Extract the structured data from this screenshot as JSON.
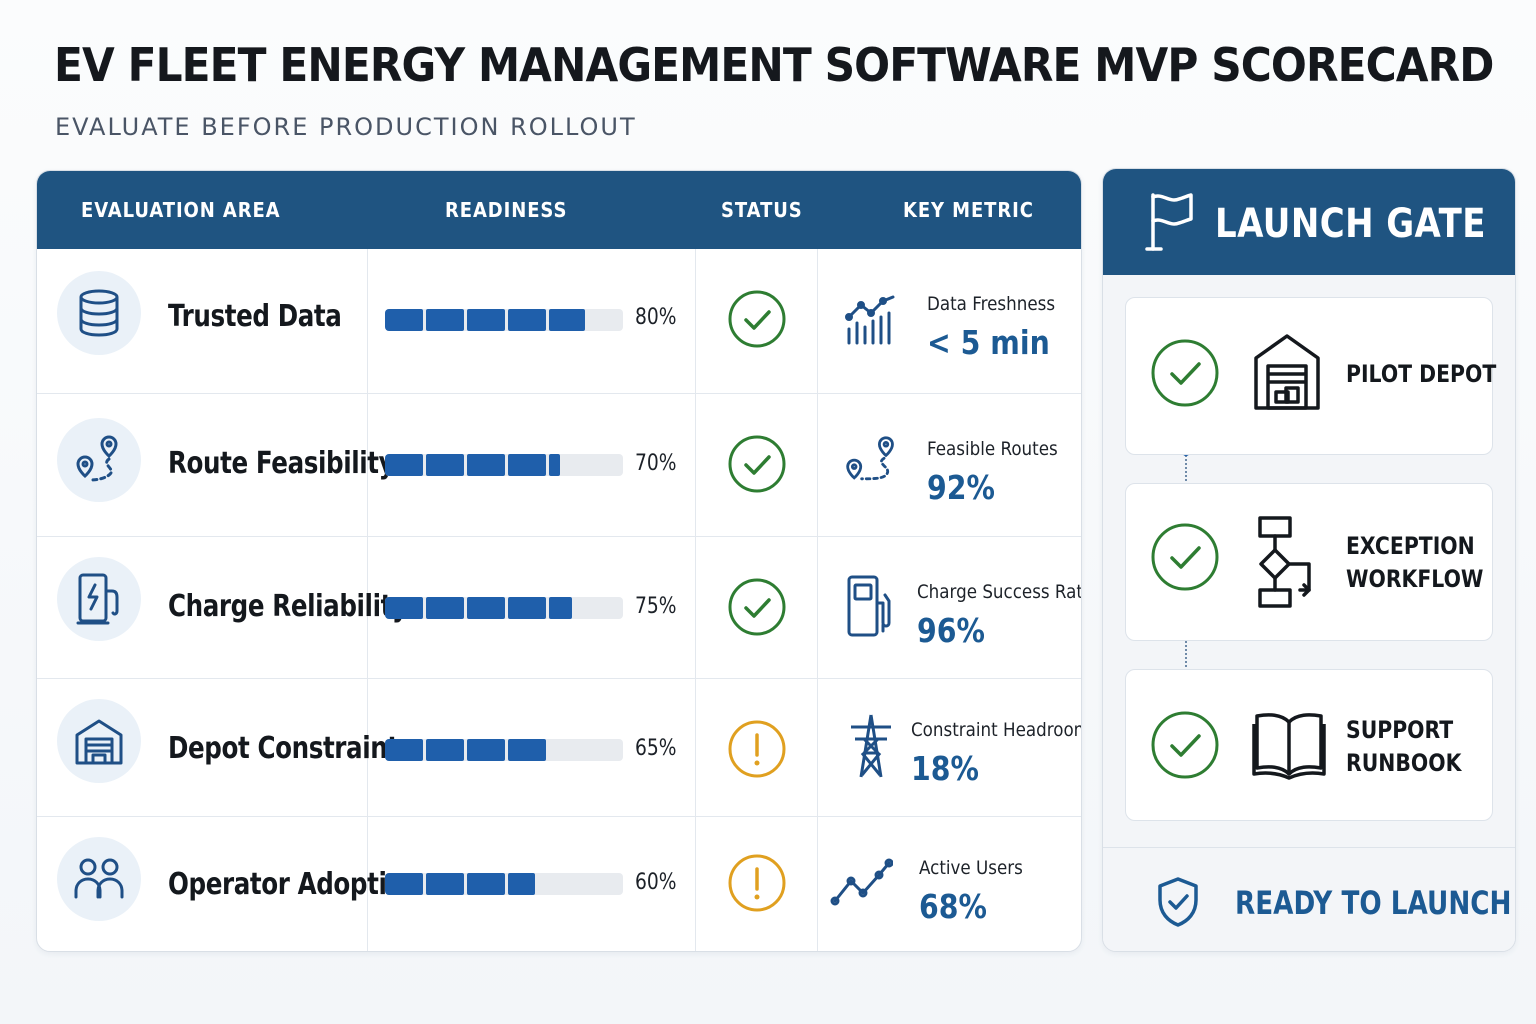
{
  "title": "EV FLEET ENERGY MANAGEMENT SOFTWARE MVP SCORECARD",
  "subtitle": "EVALUATE BEFORE PRODUCTION ROLLOUT",
  "table": {
    "headers": {
      "area": "EVALUATION AREA",
      "readiness": "READINESS",
      "status": "STATUS",
      "metric": "KEY METRIC"
    },
    "rows": [
      {
        "area": "Trusted Data",
        "area_icon": "database-icon",
        "readiness": 0.8,
        "readiness_label": "80%",
        "status": "ok",
        "metric_icon": "chart-trend-icon",
        "metric_name": "Data Freshness",
        "metric_value": "< 5 min"
      },
      {
        "area": "Route Feasibility",
        "area_icon": "route-pins-icon",
        "readiness": 0.7,
        "readiness_label": "70%",
        "status": "ok",
        "metric_icon": "route-pins-icon",
        "metric_name": "Feasible Routes",
        "metric_value": "92%"
      },
      {
        "area": "Charge Reliability",
        "area_icon": "charger-icon",
        "readiness": 0.75,
        "readiness_label": "75%",
        "status": "ok",
        "metric_icon": "fuel-pump-icon",
        "metric_name": "Charge Success Rate",
        "metric_value": "96%"
      },
      {
        "area": "Depot Constraints",
        "area_icon": "depot-icon",
        "readiness": 0.65,
        "readiness_label": "65%",
        "status": "warning",
        "metric_icon": "power-tower-icon",
        "metric_name": "Constraint Headroom",
        "metric_value": "18%"
      },
      {
        "area": "Operator Adoption",
        "area_icon": "users-icon",
        "readiness": 0.6,
        "readiness_label": "60%",
        "status": "warning",
        "metric_icon": "line-trend-icon",
        "metric_name": "Active Users",
        "metric_value": "68%"
      }
    ]
  },
  "launch_gate": {
    "title": "LAUNCH GATE",
    "items": [
      {
        "label_lines": [
          "PILOT DEPOT"
        ],
        "icon": "depot-icon",
        "status": "ok"
      },
      {
        "label_lines": [
          "EXCEPTION",
          "WORKFLOW"
        ],
        "icon": "flowchart-icon",
        "status": "ok"
      },
      {
        "label_lines": [
          "SUPPORT",
          "RUNBOOK"
        ],
        "icon": "book-icon",
        "status": "ok"
      }
    ],
    "footer": "READY TO LAUNCH"
  },
  "colors": {
    "header_blue": "#1f5481",
    "bar_blue": "#1f5fab",
    "value_blue": "#1c5a93",
    "ok_green": "#2e7d32",
    "warn_amber": "#e0a020"
  }
}
